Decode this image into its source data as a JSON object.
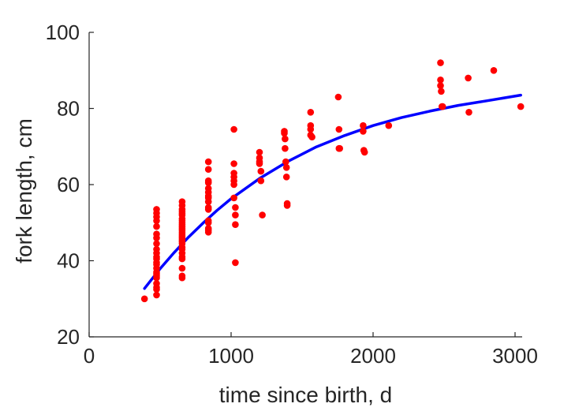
{
  "chart_data": {
    "type": "scatter",
    "xlabel": "time since birth, d",
    "ylabel": "fork length, cm",
    "xlim": [
      0,
      3050
    ],
    "ylim": [
      20,
      100
    ],
    "xticks": [
      0,
      1000,
      2000,
      3000
    ],
    "yticks": [
      20,
      40,
      60,
      80,
      100
    ],
    "grid": false,
    "box": false,
    "colors": {
      "points": "#ff0000",
      "curve": "#0000ff",
      "axis": "#262626"
    },
    "series": [
      {
        "kind": "points",
        "x": [
          390,
          475,
          475,
          475,
          475,
          475,
          475,
          475,
          475,
          475,
          475,
          475,
          475,
          475,
          475,
          475,
          475,
          475,
          475,
          475,
          475,
          475,
          475,
          475,
          655,
          655,
          655,
          655,
          655,
          655,
          655,
          655,
          655,
          655,
          655,
          655,
          655,
          655,
          655,
          655,
          655,
          655,
          655,
          655,
          655,
          655,
          655,
          655,
          655,
          655,
          655,
          655,
          840,
          840,
          840,
          840,
          840,
          840,
          840,
          840,
          840,
          840,
          840,
          840,
          840,
          840,
          840,
          840,
          1020,
          1020,
          1020,
          1020,
          1020,
          1020,
          1020,
          1030,
          1030,
          1030,
          1030,
          1200,
          1200,
          1200,
          1200,
          1210,
          1210,
          1220,
          1375,
          1375,
          1380,
          1380,
          1385,
          1390,
          1390,
          1395,
          1395,
          1560,
          1560,
          1560,
          1560,
          1570,
          1755,
          1760,
          1760,
          1765,
          1930,
          1930,
          1935,
          1940,
          2110,
          2475,
          2475,
          2475,
          2480,
          2485,
          2490,
          2670,
          2675,
          2850,
          3040
        ],
        "y": [
          30,
          53.5,
          52.5,
          51.5,
          50.5,
          49,
          47,
          46,
          44.5,
          43,
          42,
          41,
          40.5,
          39.5,
          39,
          38,
          37,
          36.5,
          36,
          35.5,
          34,
          33,
          32.5,
          31,
          55.5,
          54.5,
          53.5,
          53,
          52.5,
          52,
          51,
          50.5,
          50,
          49.5,
          49,
          48.5,
          48,
          47.5,
          47,
          46.5,
          46,
          45.5,
          45,
          44.5,
          43.5,
          43,
          42,
          41,
          40.5,
          38,
          36,
          35.5,
          66,
          64,
          61,
          60.5,
          59,
          58,
          57,
          56.5,
          55.5,
          54,
          53.5,
          50.5,
          50,
          48.5,
          48,
          47.5,
          74.5,
          65.5,
          63,
          62,
          61,
          60,
          56.5,
          54,
          52,
          49.5,
          39.5,
          68.5,
          67,
          66,
          65.5,
          63.5,
          61,
          52,
          74,
          73.5,
          72,
          69.5,
          66,
          64.5,
          62,
          55,
          54.5,
          79,
          75.5,
          74.5,
          73,
          72.5,
          83,
          74.5,
          69.5,
          69.5,
          75.5,
          74,
          69,
          68.5,
          75.5,
          92,
          87.5,
          86,
          84.5,
          80.5,
          80.5,
          88,
          79,
          90,
          80.5
        ]
      },
      {
        "kind": "fit",
        "model": "von Bertalanffy",
        "x": [
          390,
          500,
          600,
          700,
          800,
          900,
          1000,
          1200,
          1400,
          1600,
          1800,
          2000,
          2200,
          2400,
          2600,
          2800,
          3040
        ],
        "y": [
          32.7,
          37.9,
          42.2,
          46.2,
          49.8,
          53.2,
          56.3,
          61.6,
          66.1,
          69.9,
          72.9,
          75.5,
          77.6,
          79.3,
          80.8,
          82.0,
          83.5
        ]
      }
    ]
  }
}
